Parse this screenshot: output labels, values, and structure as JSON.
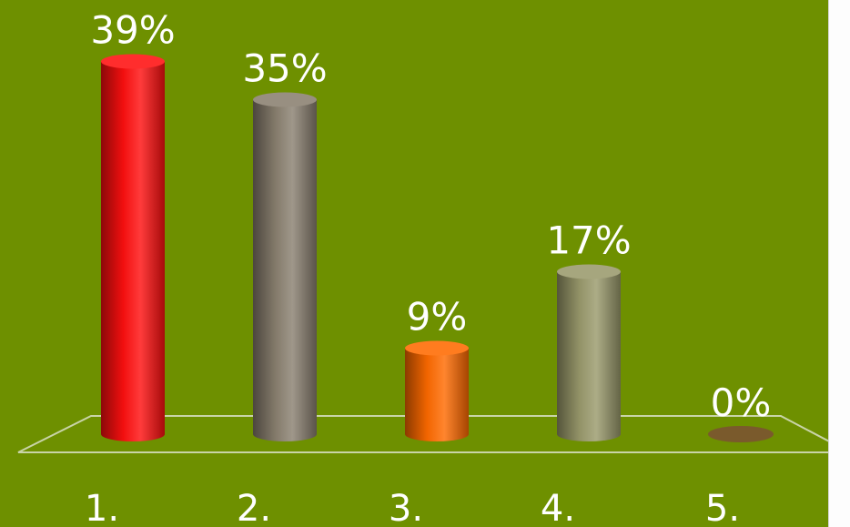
{
  "chart_data": {
    "type": "bar",
    "style": "3d-cylinder",
    "categories": [
      "1.",
      "2.",
      "3.",
      "4.",
      "5."
    ],
    "values": [
      39,
      35,
      9,
      17,
      0
    ],
    "labels": [
      "39%",
      "35%",
      "9%",
      "17%",
      "0%"
    ],
    "colors": [
      "#ff1010",
      "#8a8070",
      "#ff6a00",
      "#9a9a6c",
      "#7a5a2c"
    ],
    "background": "#6e9000",
    "ylim": [
      0,
      40
    ],
    "grid": false,
    "legend": "none"
  }
}
